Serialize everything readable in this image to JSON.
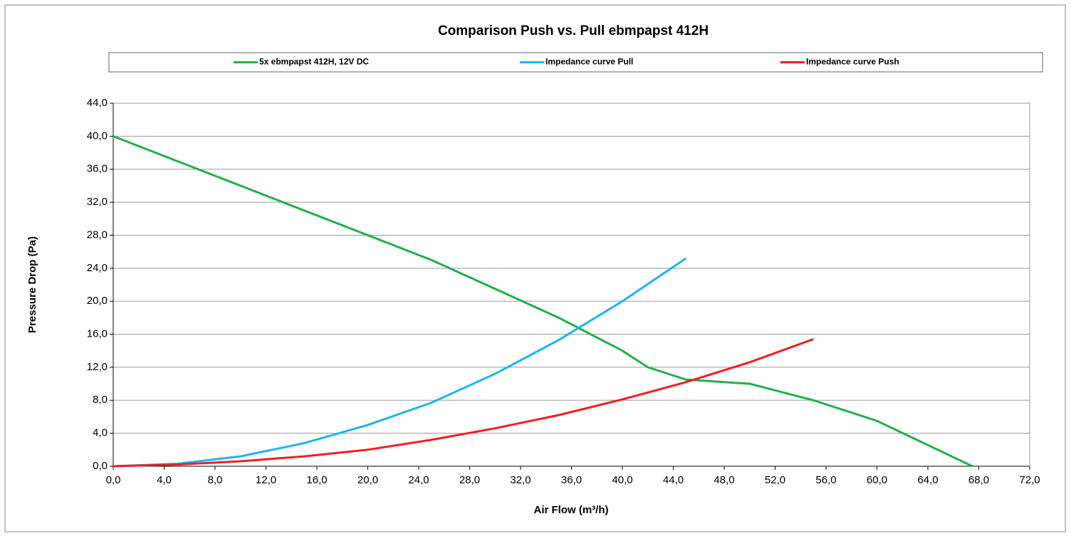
{
  "chart_data": {
    "type": "line",
    "title": "Comparison Push vs. Pull ebmpapst 412H",
    "xlabel": "Air Flow (m³/h)",
    "ylabel": "Pressure Drop (Pa)",
    "grid": true,
    "legend": "top",
    "xlim": [
      0,
      72
    ],
    "ylim": [
      0,
      44
    ],
    "xticks": [
      {
        "value": 0,
        "label": "0,0"
      },
      {
        "value": 4,
        "label": "4,0"
      },
      {
        "value": 8,
        "label": "8,0"
      },
      {
        "value": 12,
        "label": "12,0"
      },
      {
        "value": 16,
        "label": "16,0"
      },
      {
        "value": 20,
        "label": "20,0"
      },
      {
        "value": 24,
        "label": "24,0"
      },
      {
        "value": 28,
        "label": "28,0"
      },
      {
        "value": 32,
        "label": "32,0"
      },
      {
        "value": 36,
        "label": "36,0"
      },
      {
        "value": 40,
        "label": "40,0"
      },
      {
        "value": 44,
        "label": "44,0"
      },
      {
        "value": 48,
        "label": "48,0"
      },
      {
        "value": 52,
        "label": "52,0"
      },
      {
        "value": 56,
        "label": "56,0"
      },
      {
        "value": 60,
        "label": "60,0"
      },
      {
        "value": 64,
        "label": "64,0"
      },
      {
        "value": 68,
        "label": "68,0"
      },
      {
        "value": 72,
        "label": "72,0"
      }
    ],
    "yticks": [
      {
        "value": 0,
        "label": "0,0"
      },
      {
        "value": 4,
        "label": "4,0"
      },
      {
        "value": 8,
        "label": "8,0"
      },
      {
        "value": 12,
        "label": "12,0"
      },
      {
        "value": 16,
        "label": "16,0"
      },
      {
        "value": 20,
        "label": "20,0"
      },
      {
        "value": 24,
        "label": "24,0"
      },
      {
        "value": 28,
        "label": "28,0"
      },
      {
        "value": 32,
        "label": "32,0"
      },
      {
        "value": 36,
        "label": "36,0"
      },
      {
        "value": 40,
        "label": "40,0"
      },
      {
        "value": 44,
        "label": "44,0"
      }
    ],
    "series": [
      {
        "name": "5x ebmpapst 412H, 12V DC",
        "color": "#22b04b",
        "x": [
          0,
          10,
          15,
          20,
          25,
          30,
          35,
          40,
          42,
          45,
          50,
          55,
          60,
          67.5
        ],
        "values": [
          40,
          34,
          31,
          28,
          25,
          21.5,
          18,
          14,
          12,
          10.5,
          10,
          8,
          5.5,
          0
        ]
      },
      {
        "name": "Impedance curve Pull",
        "color": "#1fb4ec",
        "x": [
          0,
          5,
          10,
          15,
          20,
          25,
          30,
          35,
          40,
          45
        ],
        "values": [
          0,
          0.3,
          1.2,
          2.8,
          5,
          7.7,
          11.2,
          15.3,
          20,
          25.2
        ]
      },
      {
        "name": "Impedance curve Push",
        "color": "#f01e23",
        "x": [
          0,
          5,
          10,
          15,
          20,
          25,
          30,
          35,
          40,
          45,
          50,
          55
        ],
        "values": [
          0,
          0.2,
          0.6,
          1.2,
          2,
          3.2,
          4.6,
          6.2,
          8.1,
          10.2,
          12.6,
          15.4
        ]
      }
    ]
  }
}
